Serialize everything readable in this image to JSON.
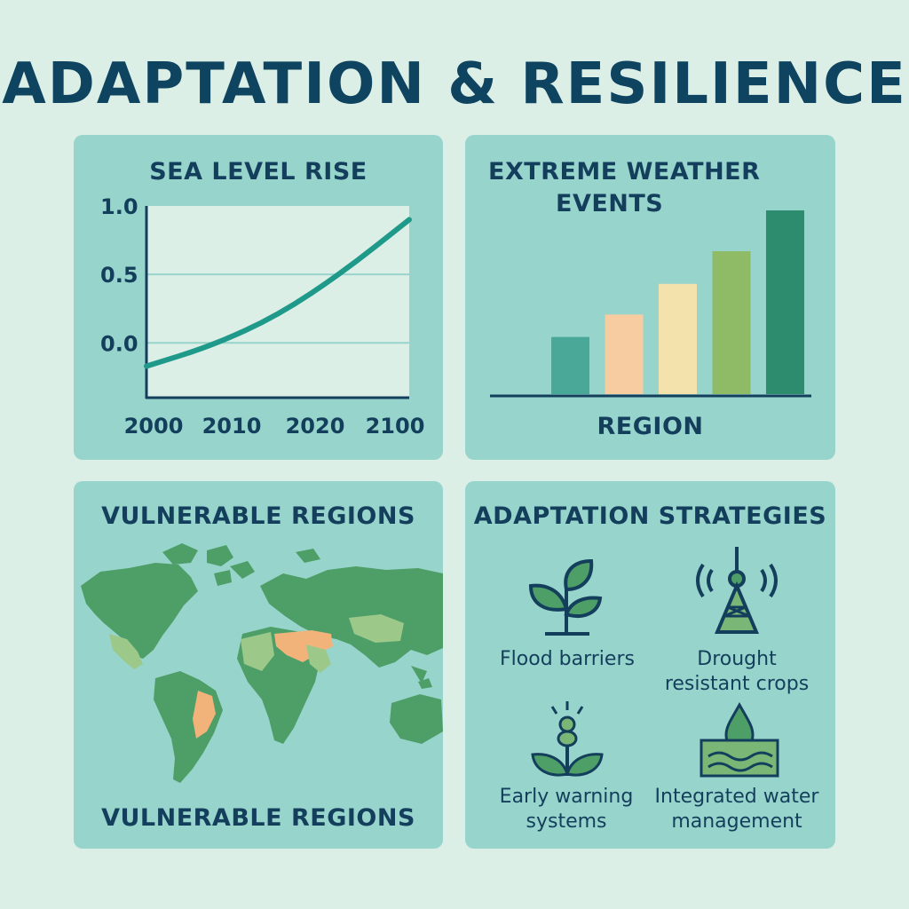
{
  "title": "ADAPTATION & RESILIENCE",
  "panels": {
    "sea_level": {
      "title": "SEA LEVEL RISE"
    },
    "extreme": {
      "title_line1": "EXTREME WEATHER",
      "title_line2": "EVENTS",
      "xlabel": "REGION"
    },
    "vulnerable": {
      "title": "VULNERABLE REGIONS",
      "caption": "VULNERABLE REGIONS"
    },
    "strategies": {
      "title": "ADAPTATION STRATEGIES",
      "items": [
        {
          "label": "Flood barriers",
          "icon": "plant-icon"
        },
        {
          "label": "Drought resistant crops",
          "icon": "antenna-tower-icon"
        },
        {
          "label": "Early warning systems",
          "icon": "sprout-icon"
        },
        {
          "label": "Integrated water management",
          "icon": "water-drop-icon"
        }
      ]
    }
  },
  "colors": {
    "background": "#dcefe6",
    "panel": "#97d4cc",
    "text": "#143f5c",
    "line": "#1f9a8a",
    "land": "#4e9e67",
    "land_light": "#9cc98a",
    "vulnerable": "#f2b37a"
  },
  "chart_data": [
    {
      "type": "line",
      "title": "SEA LEVEL RISE",
      "xlabel": "",
      "ylabel": "",
      "x_ticks": [
        "2000",
        "2010",
        "2020",
        "2100"
      ],
      "y_ticks": [
        "1.0",
        "0.5",
        "0.0"
      ],
      "ylim": [
        -0.4,
        1.0
      ],
      "grid": true,
      "series": [
        {
          "x": [
            0,
            0.25,
            0.5,
            0.75,
            1.0
          ],
          "values": [
            -0.17,
            -0.02,
            0.2,
            0.52,
            0.9
          ]
        }
      ]
    },
    {
      "type": "bar",
      "title": "EXTREME WEATHER EVENTS",
      "xlabel": "REGION",
      "ylabel": "",
      "values": [
        0.28,
        0.39,
        0.54,
        0.7,
        0.9
      ],
      "colors": [
        "#4aa898",
        "#f6cca0",
        "#f4e2ad",
        "#8fba66",
        "#2e8c6e"
      ]
    }
  ]
}
